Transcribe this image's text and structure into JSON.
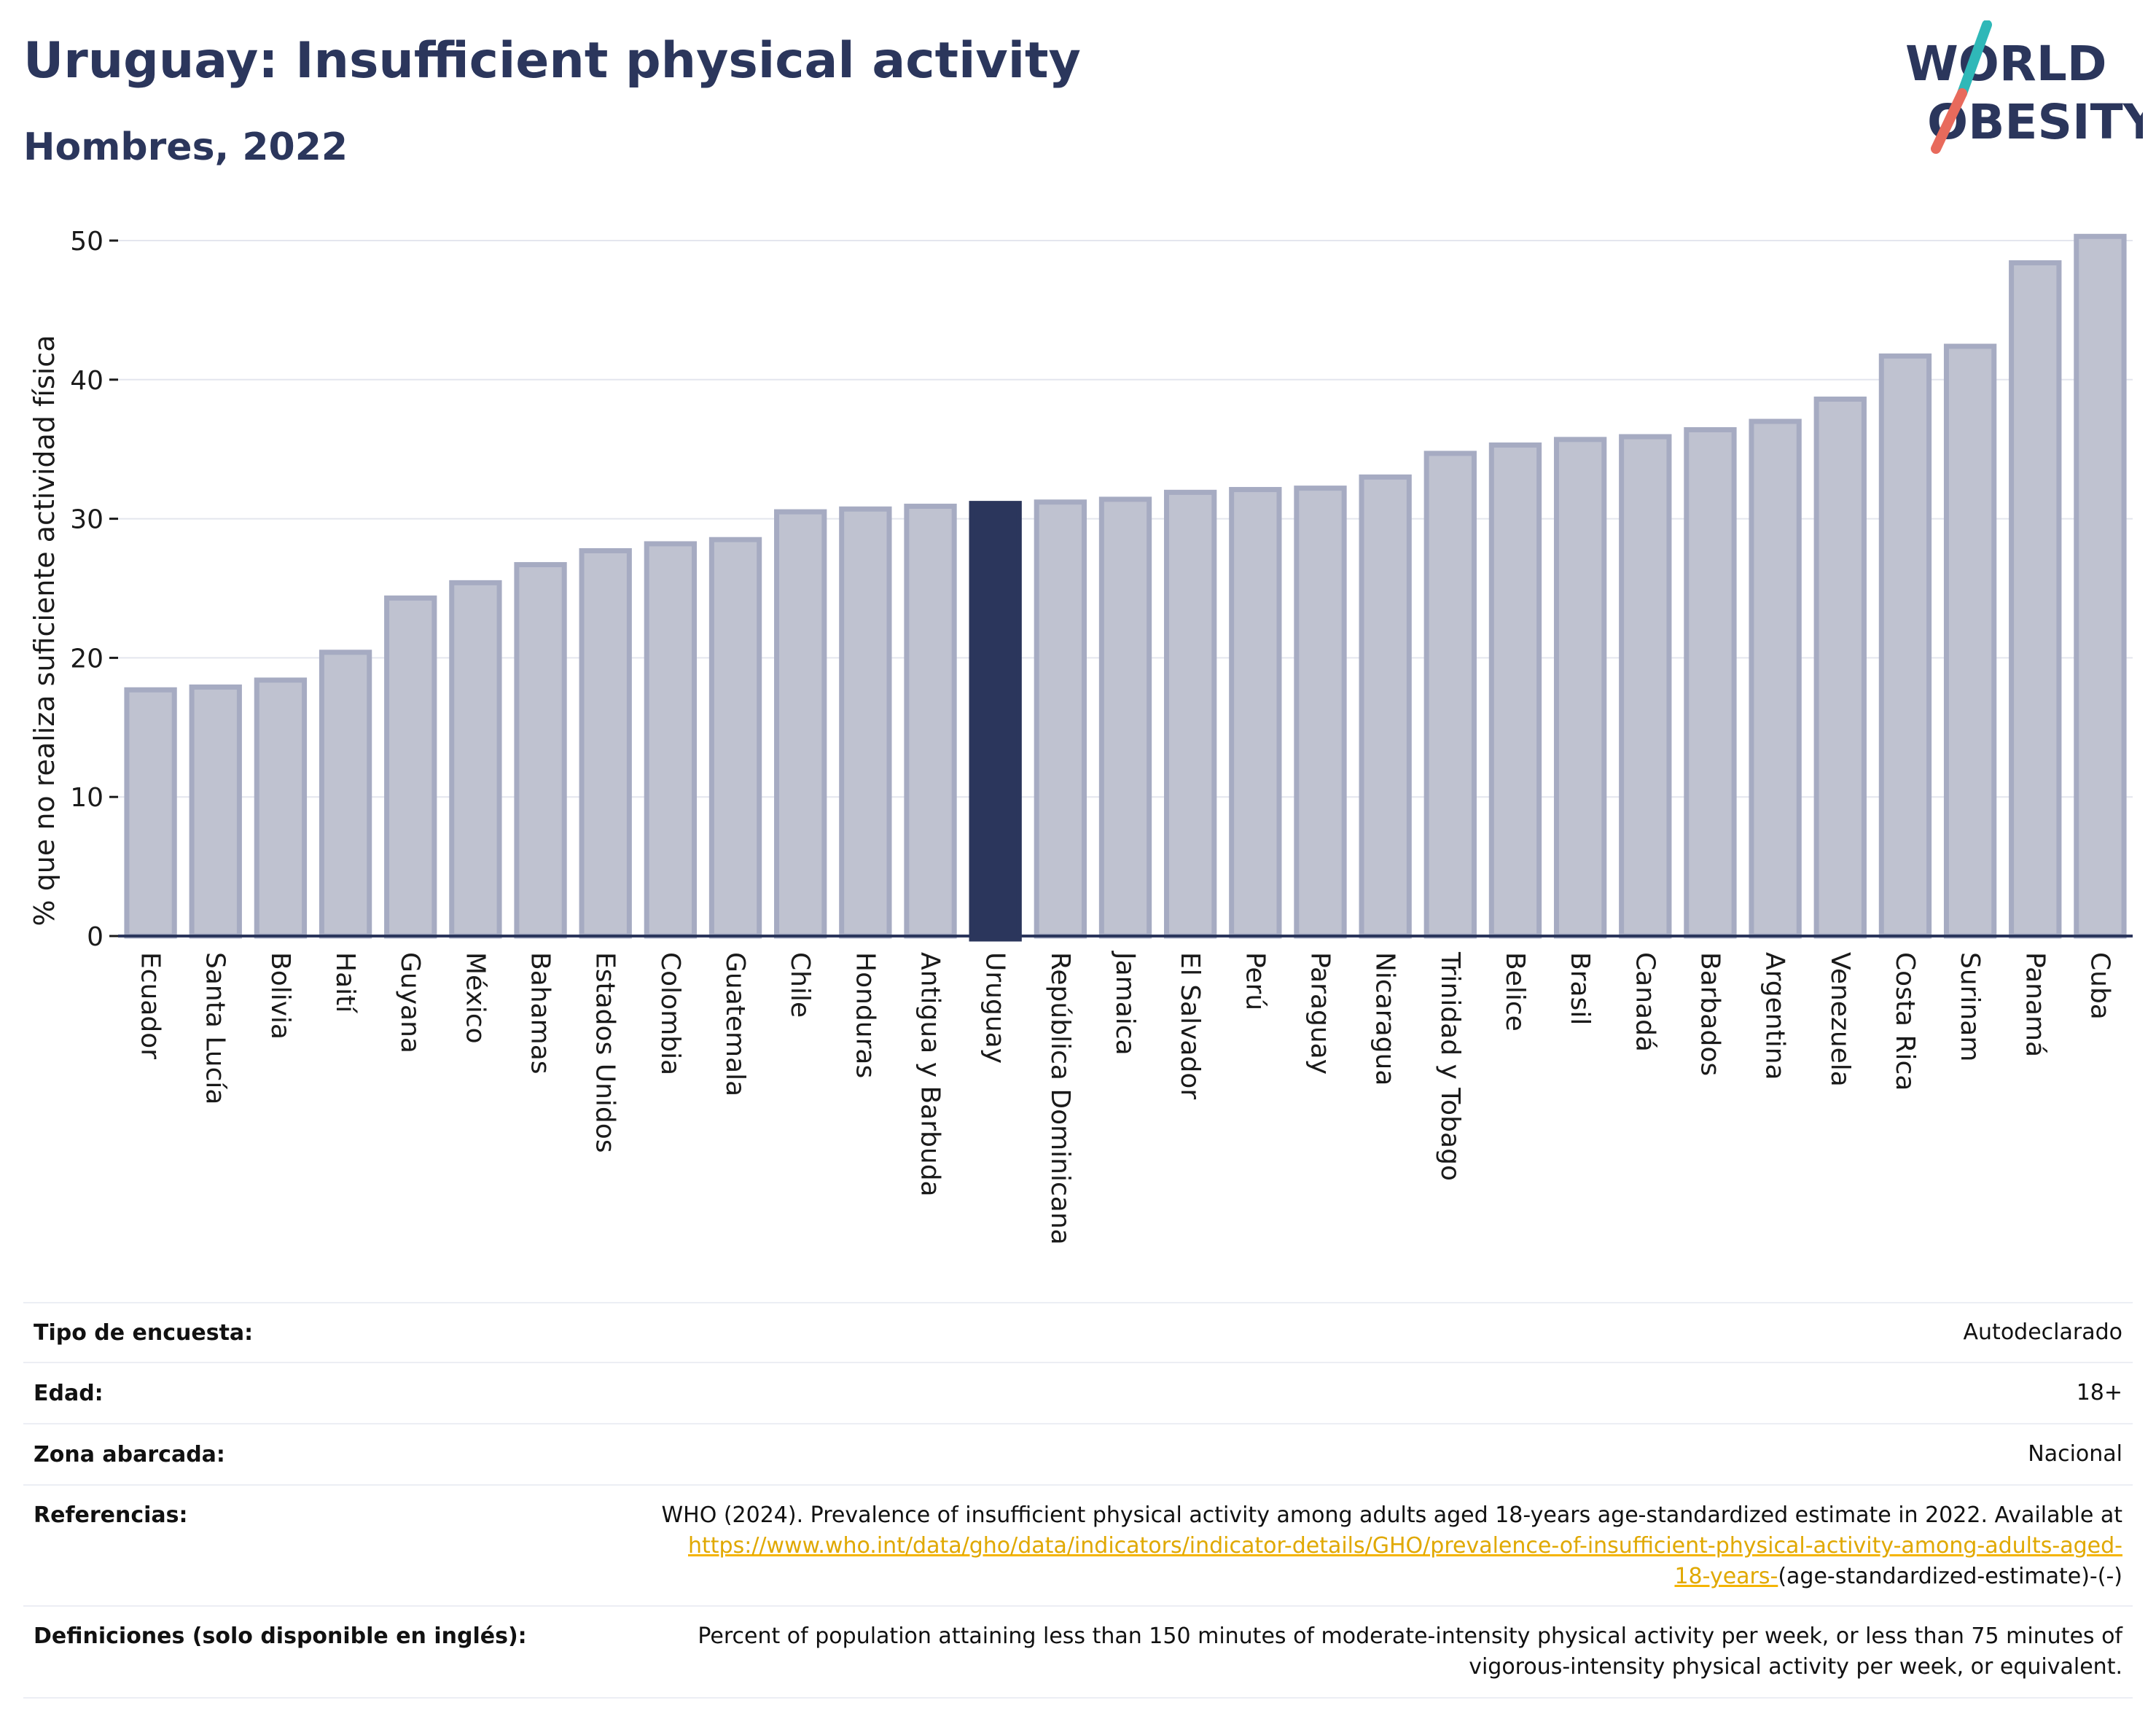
{
  "title": "Uruguay: Insufficient physical activity",
  "subtitle": "Hombres, 2022",
  "logo": {
    "line1": "WORLD",
    "line2": "OBESITY",
    "accent_teal": "#2fb8b8",
    "accent_coral": "#e86a5c",
    "text_color": "#2b365c"
  },
  "colors": {
    "bar": "#bfc2d0",
    "bar_edge": "#a6abc2",
    "highlight": "#2b365c",
    "axis": "#2b365c",
    "grid": "#e4e6ee"
  },
  "chart_data": {
    "type": "bar",
    "title": "Uruguay: Insufficient physical activity",
    "subtitle": "Hombres, 2022",
    "ylabel": "% que no realiza suficiente actividad física",
    "xlabel": "",
    "ylim": [
      0,
      50
    ],
    "yticks": [
      0,
      10,
      20,
      30,
      40,
      50
    ],
    "grid": true,
    "highlight": "Uruguay",
    "categories": [
      "Ecuador",
      "Santa Lucía",
      "Bolivia",
      "Haití",
      "Guyana",
      "México",
      "Bahamas",
      "Estados Unidos",
      "Colombia",
      "Guatemala",
      "Chile",
      "Honduras",
      "Antigua y Barbuda",
      "Uruguay",
      "República Dominicana",
      "Jamaica",
      "El Salvador",
      "Perú",
      "Paraguay",
      "Nicaragua",
      "Trinidad y Tobago",
      "Belice",
      "Brasil",
      "Canadá",
      "Barbados",
      "Argentina",
      "Venezuela",
      "Costa Rica",
      "Surinam",
      "Panamá",
      "Cuba"
    ],
    "values": [
      17.7,
      17.9,
      18.4,
      20.4,
      24.3,
      25.4,
      26.7,
      27.7,
      28.2,
      28.5,
      30.5,
      30.7,
      30.9,
      31.1,
      31.2,
      31.4,
      31.9,
      32.1,
      32.2,
      33.0,
      34.7,
      35.3,
      35.7,
      35.9,
      36.4,
      37.0,
      38.6,
      41.7,
      42.4,
      48.4,
      50.3
    ]
  },
  "meta": {
    "rows": [
      {
        "label": "Tipo de encuesta:",
        "value": "Autodeclarado"
      },
      {
        "label": "Edad:",
        "value": "18+"
      },
      {
        "label": "Zona abarcada:",
        "value": "Nacional"
      }
    ],
    "references": {
      "label": "Referencias:",
      "text": "WHO (2024). Prevalence of insufficient physical activity among adults aged 18-years age-standardized estimate in 2022. Available at",
      "link_line1": "https://www.who.int/data/gho/data/indicators/indicator-details/GHO/prevalence-of-insufficient-physical-activity-among-adults-aged-",
      "link_line2": "18-years-",
      "tail": "(age-standardized-estimate)-(-)"
    },
    "definitions": {
      "label": "Definiciones (solo disponible en inglés):",
      "line1": "Percent of population attaining less than 150 minutes of moderate-intensity physical activity per week, or less than 75 minutes of",
      "line2": "vigorous-intensity physical activity per week, or equivalent."
    }
  }
}
